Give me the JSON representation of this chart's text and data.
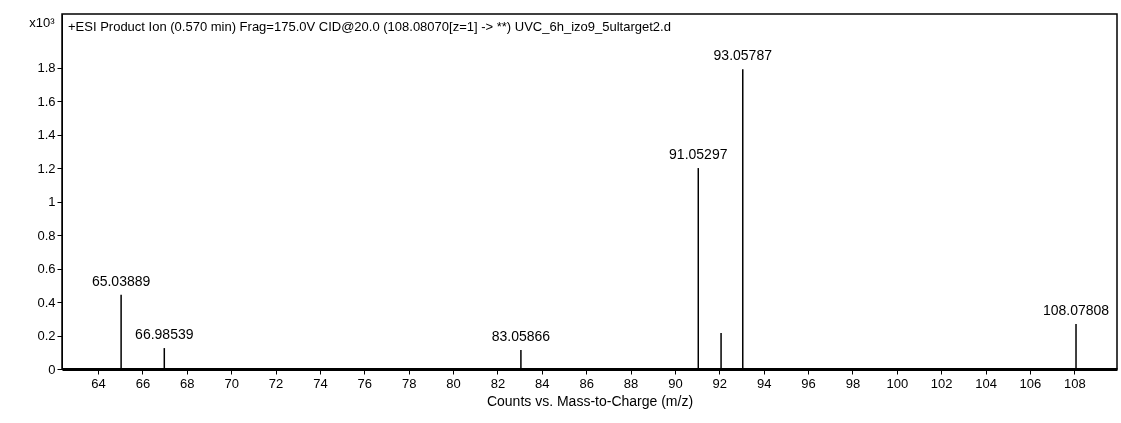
{
  "chart_data": {
    "type": "bar",
    "title": "+ESI Product Ion (0.570 min) Frag=175.0V CID@20.0 (108.08070[z=1] -> **) UVC_6h_izo9_5ultarget2.d",
    "xlabel": "Counts vs. Mass-to-Charge (m/z)",
    "ylabel": "x10³",
    "x": [
      65.03889,
      66.98539,
      83.05866,
      91.05297,
      92.08,
      93.05787,
      108.07808
    ],
    "values": [
      0.443,
      0.125,
      0.113,
      1.2,
      0.215,
      1.79,
      0.268
    ],
    "annotations": [
      {
        "text": "65.03889",
        "x": 65.03889,
        "y": 0.443
      },
      {
        "text": "66.98539",
        "x": 66.98539,
        "y": 0.125
      },
      {
        "text": "83.05866",
        "x": 83.05866,
        "y": 0.113
      },
      {
        "text": "91.05297",
        "x": 91.05297,
        "y": 1.2
      },
      {
        "text": "93.05787",
        "x": 93.05787,
        "y": 1.79
      },
      {
        "text": "108.07808",
        "x": 108.07808,
        "y": 0.268
      }
    ],
    "color": "#000000",
    "xlim": [
      62.6,
      109.7
    ],
    "xticks": [
      64,
      66,
      68,
      70,
      72,
      74,
      76,
      78,
      80,
      82,
      84,
      86,
      88,
      90,
      92,
      94,
      96,
      98,
      100,
      102,
      104,
      106,
      108
    ],
    "ylim": [
      0,
      2.12
    ],
    "yticks": [
      0,
      0.2,
      0.4,
      0.6,
      0.8,
      1,
      1.2,
      1.4,
      1.6,
      1.8
    ],
    "grid": false
  }
}
